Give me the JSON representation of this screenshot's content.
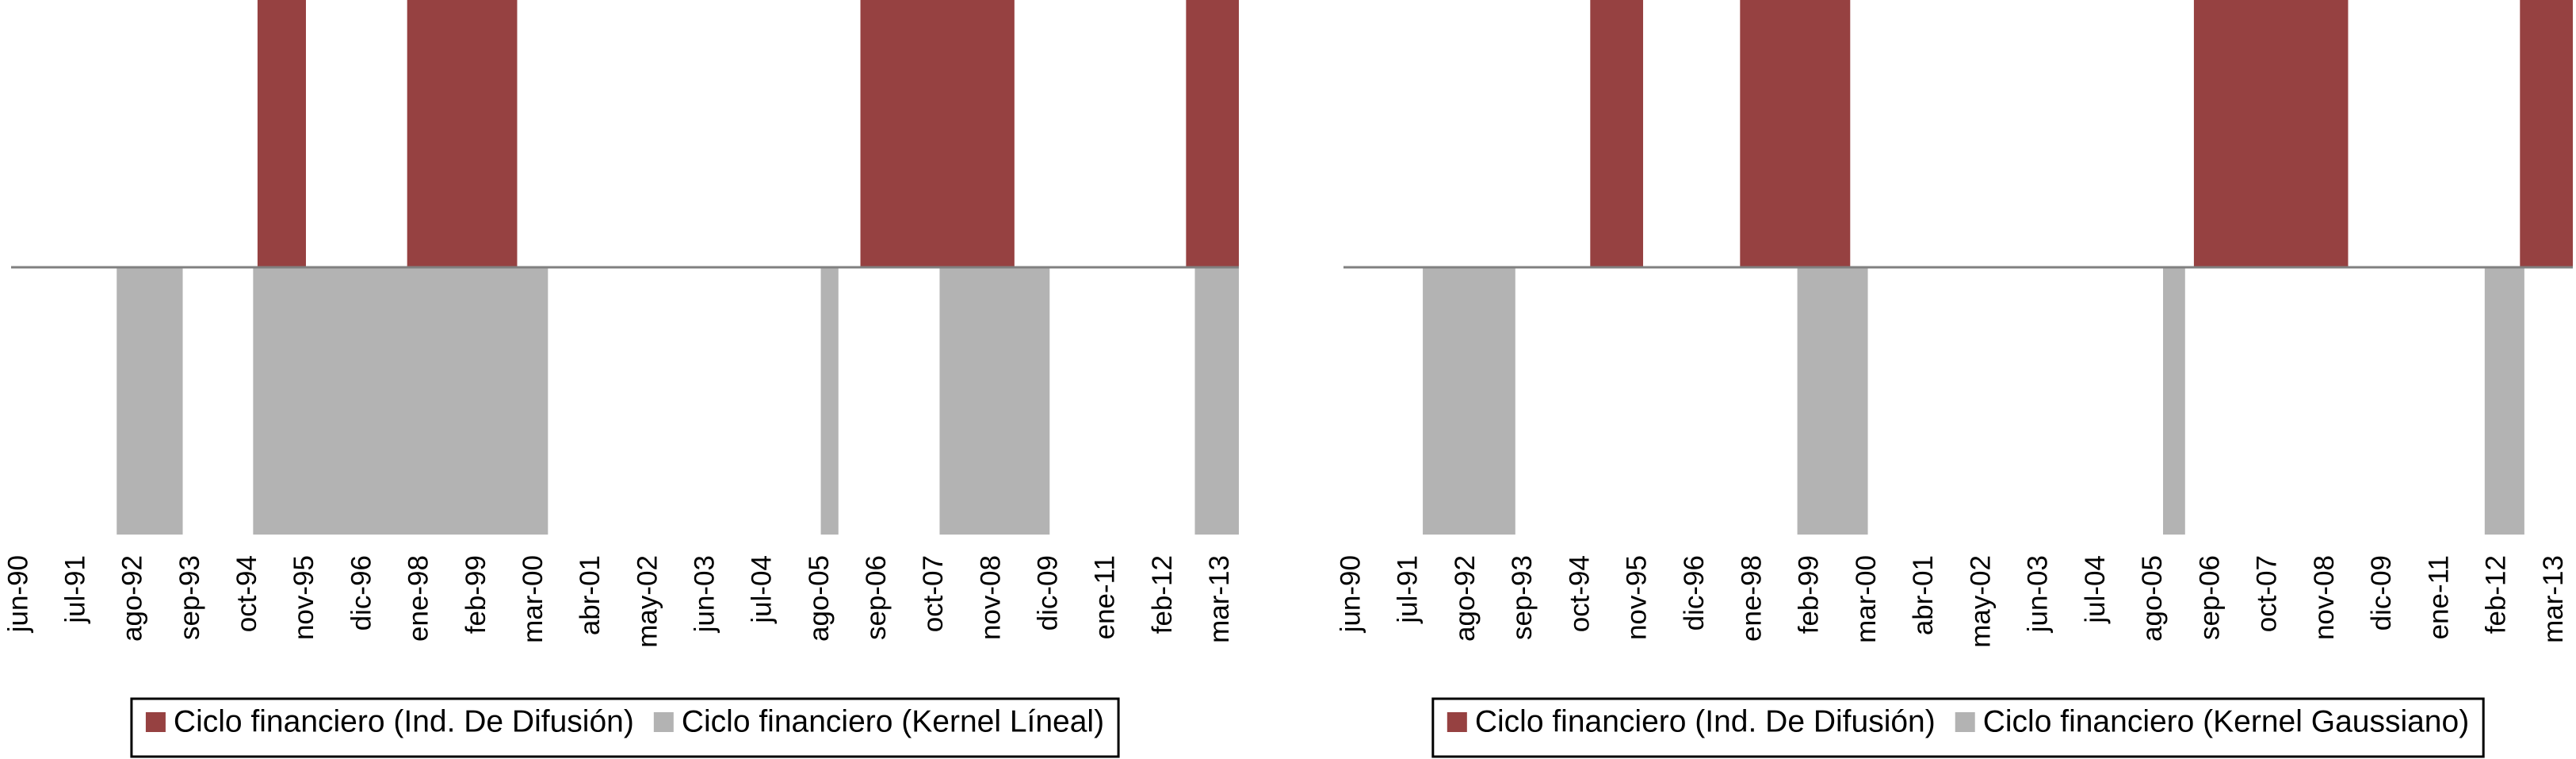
{
  "chart_data": [
    {
      "type": "bar",
      "xlim": [
        -2,
        277
      ],
      "xticks": [
        {
          "value": 0,
          "label": "jun-90"
        },
        {
          "value": 13,
          "label": "jul-91"
        },
        {
          "value": 26,
          "label": "ago-92"
        },
        {
          "value": 39,
          "label": "sep-93"
        },
        {
          "value": 52,
          "label": "oct-94"
        },
        {
          "value": 65,
          "label": "nov-95"
        },
        {
          "value": 78,
          "label": "dic-96"
        },
        {
          "value": 91,
          "label": "ene-98"
        },
        {
          "value": 104,
          "label": "feb-99"
        },
        {
          "value": 117,
          "label": "mar-00"
        },
        {
          "value": 130,
          "label": "abr-01"
        },
        {
          "value": 143,
          "label": "may-02"
        },
        {
          "value": 156,
          "label": "jun-03"
        },
        {
          "value": 169,
          "label": "jul-04"
        },
        {
          "value": 182,
          "label": "ago-05"
        },
        {
          "value": 195,
          "label": "sep-06"
        },
        {
          "value": 208,
          "label": "oct-07"
        },
        {
          "value": 221,
          "label": "nov-08"
        },
        {
          "value": 234,
          "label": "dic-09"
        },
        {
          "value": 247,
          "label": "ene-11"
        },
        {
          "value": 260,
          "label": "feb-12"
        },
        {
          "value": 273,
          "label": "mar-13"
        }
      ],
      "ylim": [
        -1,
        1
      ],
      "series": [
        {
          "name": "Ciclo financiero (Ind. De Difusión)",
          "color": "#964141",
          "x_start": [
            54,
            88,
            191,
            265
          ],
          "x_end": [
            65,
            113,
            226,
            277
          ],
          "values": [
            1,
            1,
            1,
            1
          ]
        },
        {
          "name": "Ciclo financiero (Kernel Líneal)",
          "color": "#b3b3b3",
          "x_start": [
            22,
            53,
            182,
            209,
            267
          ],
          "x_end": [
            37,
            120,
            186,
            234,
            277
          ],
          "values": [
            -1,
            -1,
            -1,
            -1,
            -1
          ]
        }
      ]
    },
    {
      "type": "bar",
      "xlim": [
        -2,
        277
      ],
      "xticks": [
        {
          "value": 0,
          "label": "jun-90"
        },
        {
          "value": 13,
          "label": "jul-91"
        },
        {
          "value": 26,
          "label": "ago-92"
        },
        {
          "value": 39,
          "label": "sep-93"
        },
        {
          "value": 52,
          "label": "oct-94"
        },
        {
          "value": 65,
          "label": "nov-95"
        },
        {
          "value": 78,
          "label": "dic-96"
        },
        {
          "value": 91,
          "label": "ene-98"
        },
        {
          "value": 104,
          "label": "feb-99"
        },
        {
          "value": 117,
          "label": "mar-00"
        },
        {
          "value": 130,
          "label": "abr-01"
        },
        {
          "value": 143,
          "label": "may-02"
        },
        {
          "value": 156,
          "label": "jun-03"
        },
        {
          "value": 169,
          "label": "jul-04"
        },
        {
          "value": 182,
          "label": "ago-05"
        },
        {
          "value": 195,
          "label": "sep-06"
        },
        {
          "value": 208,
          "label": "oct-07"
        },
        {
          "value": 221,
          "label": "nov-08"
        },
        {
          "value": 234,
          "label": "dic-09"
        },
        {
          "value": 247,
          "label": "ene-11"
        },
        {
          "value": 260,
          "label": "feb-12"
        },
        {
          "value": 273,
          "label": "mar-13"
        }
      ],
      "ylim": [
        -1,
        1
      ],
      "series": [
        {
          "name": "Ciclo financiero (Ind. De Difusión)",
          "color": "#964141",
          "x_start": [
            54,
            88,
            191,
            265
          ],
          "x_end": [
            66,
            113,
            226,
            277
          ],
          "values": [
            1,
            1,
            1,
            1
          ]
        },
        {
          "name": "Ciclo financiero (Kernel Gaussiano)",
          "color": "#b3b3b3",
          "x_start": [
            16,
            101,
            184,
            257
          ],
          "x_end": [
            37,
            117,
            189,
            266
          ],
          "values": [
            -1,
            -1,
            -1,
            -1
          ]
        }
      ]
    }
  ]
}
